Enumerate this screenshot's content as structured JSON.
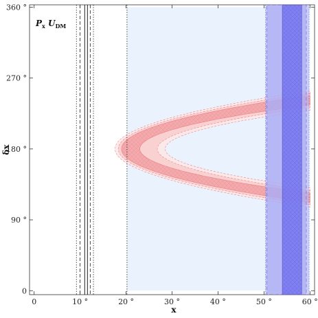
{
  "chart_data": {
    "type": "area",
    "title": "",
    "xlabel": "x",
    "ylabel": "δx",
    "xlim": [
      -1,
      61
    ],
    "ylim": [
      -5,
      363
    ],
    "x_ticks": [
      {
        "value": 0,
        "label": "0"
      },
      {
        "value": 10,
        "label": "10 °"
      },
      {
        "value": 20,
        "label": "20 °"
      },
      {
        "value": 30,
        "label": "30 °"
      },
      {
        "value": 40,
        "label": "40 °"
      },
      {
        "value": 50,
        "label": "50 °"
      },
      {
        "value": 60,
        "label": "60 °"
      }
    ],
    "y_ticks": [
      {
        "value": 0,
        "label": "0"
      },
      {
        "value": 90,
        "label": "90 °"
      },
      {
        "value": 180,
        "label": "180 °"
      },
      {
        "value": 270,
        "label": "270 °"
      },
      {
        "value": 360,
        "label": "360 °"
      }
    ],
    "annotation": {
      "main": "P",
      "main_sub": "x",
      "second": "U",
      "second_sub": "DM"
    },
    "grid": false,
    "vertical_lines": [
      {
        "x": 9.2,
        "style": "dotted"
      },
      {
        "x": 10.0,
        "style": "dashed"
      },
      {
        "x": 11.0,
        "style": "solid"
      },
      {
        "x": 11.6,
        "style": "solid"
      },
      {
        "x": 12.2,
        "style": "dashed"
      },
      {
        "x": 12.9,
        "style": "dotted"
      },
      {
        "x": 20.2,
        "style": "dotted"
      }
    ],
    "light_band": {
      "x_from": 20.2,
      "x_to": 60,
      "y_from": 0,
      "y_to": 360,
      "color": "#eaf3fd"
    },
    "blue_bands": [
      {
        "x_from": 50.3,
        "x_to": 59.8,
        "color": "#b7b7f7",
        "edge": "dotted"
      },
      {
        "x_from": 50.6,
        "x_to": 59.2,
        "color": "#a9a9f4",
        "edge": "dashed"
      },
      {
        "x_from": 54.0,
        "x_to": 58.2,
        "color": "#6e6ef0",
        "edge": "solid"
      }
    ],
    "red_region": {
      "center_delta": 180,
      "vertex_x": 21,
      "outer_half_width": 70,
      "open_end_x": 60,
      "bands": [
        {
          "level": "3sigma",
          "vertex_x_range": [
            17.6,
            28.5
          ],
          "half_width_range": [
            49,
            74
          ],
          "color": "#fde8e8"
        },
        {
          "level": "2sigma",
          "vertex_x_range": [
            18.3,
            26.8
          ],
          "half_width_range": [
            53,
            71
          ],
          "color": "#f9cfcf"
        },
        {
          "level": "1sigma",
          "vertex_x_range": [
            19.0,
            23.0
          ],
          "half_width_range": [
            56,
            68
          ],
          "color": "#f2a6a8"
        }
      ]
    }
  }
}
